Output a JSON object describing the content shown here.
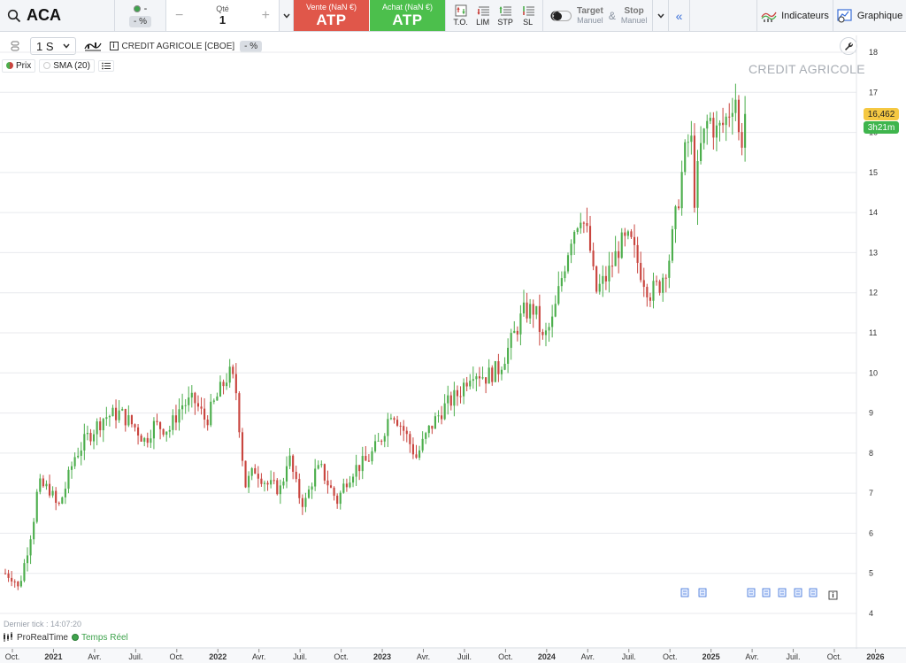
{
  "topbar": {
    "symbol": "ACA",
    "change_dot": "-",
    "change_pct": "- %",
    "qty_label": "Qté",
    "qty_value": "1",
    "qty_minus": "−",
    "qty_plus": "+",
    "sell_label": "Vente (NaN €)",
    "sell_value": "ATP",
    "buy_label": "Achat (NaN €)",
    "buy_value": "ATP",
    "orders": [
      {
        "label": "T.O."
      },
      {
        "label": "LIM"
      },
      {
        "label": "STP"
      },
      {
        "label": "SL"
      }
    ],
    "target_label": "Target",
    "target_sub": "Manuel",
    "amp": "&",
    "stop_label": "Stop",
    "stop_sub": "Manuel",
    "collapse": "«",
    "indicators_label": "Indicateurs",
    "graph_label": "Graphique"
  },
  "toolbar": {
    "timeframe": "1 S",
    "instrument": "CREDIT AGRICOLE [CBOE]",
    "pct": "- %"
  },
  "legend": {
    "price": "Prix",
    "sma": "SMA (20)"
  },
  "watermark": "CREDIT AGRICOLE",
  "tags": {
    "price": "16,462",
    "countdown": "3h21m"
  },
  "footer": {
    "last_tick": "Dernier tick : 14:07:20",
    "source": "ProRealTime",
    "realtime": "Temps Réel"
  },
  "colors": {
    "up": "#4cae4c",
    "down": "#c9453f",
    "grid": "#e8eaee",
    "price_tag": "#f5c842",
    "countdown_tag": "#3fb54d"
  },
  "chart_data": {
    "type": "candlestick",
    "title": "",
    "interval": "1 S",
    "ylim": [
      3.8,
      18.3
    ],
    "y_ticks": [
      4,
      5,
      6,
      7,
      8,
      9,
      10,
      11,
      12,
      13,
      14,
      15,
      16,
      17,
      18
    ],
    "x_ticks": [
      {
        "label": "Oct.",
        "t": 0.0,
        "bold": false
      },
      {
        "label": "2021",
        "t": 0.25,
        "bold": true
      },
      {
        "label": "Avr.",
        "t": 0.5,
        "bold": false
      },
      {
        "label": "Juil.",
        "t": 0.75,
        "bold": false
      },
      {
        "label": "Oct.",
        "t": 1.0,
        "bold": false
      },
      {
        "label": "2022",
        "t": 1.25,
        "bold": true
      },
      {
        "label": "Avr.",
        "t": 1.5,
        "bold": false
      },
      {
        "label": "Juil.",
        "t": 1.75,
        "bold": false
      },
      {
        "label": "Oct.",
        "t": 2.0,
        "bold": false
      },
      {
        "label": "2023",
        "t": 2.25,
        "bold": true
      },
      {
        "label": "Avr.",
        "t": 2.5,
        "bold": false
      },
      {
        "label": "Juil.",
        "t": 2.75,
        "bold": false
      },
      {
        "label": "Oct.",
        "t": 3.0,
        "bold": false
      },
      {
        "label": "2024",
        "t": 3.25,
        "bold": true
      },
      {
        "label": "Avr.",
        "t": 3.5,
        "bold": false
      },
      {
        "label": "Juil.",
        "t": 3.75,
        "bold": false
      },
      {
        "label": "Oct.",
        "t": 4.0,
        "bold": false
      },
      {
        "label": "2025",
        "t": 4.25,
        "bold": true
      },
      {
        "label": "Avr.",
        "t": 4.5,
        "bold": false
      },
      {
        "label": "Juil.",
        "t": 4.75,
        "bold": false
      },
      {
        "label": "Oct.",
        "t": 5.0,
        "bold": false
      },
      {
        "label": "2026",
        "t": 5.25,
        "bold": true
      }
    ],
    "anchors": [
      [
        0.0,
        5.0
      ],
      [
        0.05,
        4.9
      ],
      [
        0.08,
        4.6
      ],
      [
        0.13,
        5.5
      ],
      [
        0.17,
        6.3
      ],
      [
        0.2,
        7.2
      ],
      [
        0.27,
        7.1
      ],
      [
        0.32,
        6.6
      ],
      [
        0.37,
        7.2
      ],
      [
        0.42,
        7.9
      ],
      [
        0.5,
        8.4
      ],
      [
        0.6,
        8.9
      ],
      [
        0.7,
        9.0
      ],
      [
        0.8,
        8.6
      ],
      [
        0.85,
        8.3
      ],
      [
        0.9,
        8.7
      ],
      [
        1.0,
        8.6
      ],
      [
        1.07,
        9.2
      ],
      [
        1.15,
        9.3
      ],
      [
        1.22,
        8.8
      ],
      [
        1.3,
        9.5
      ],
      [
        1.36,
        10.0
      ],
      [
        1.4,
        9.7
      ],
      [
        1.43,
        8.4
      ],
      [
        1.46,
        7.2
      ],
      [
        1.52,
        7.6
      ],
      [
        1.6,
        7.2
      ],
      [
        1.68,
        7.1
      ],
      [
        1.72,
        8.0
      ],
      [
        1.78,
        7.0
      ],
      [
        1.82,
        6.7
      ],
      [
        1.88,
        7.5
      ],
      [
        1.92,
        7.6
      ],
      [
        1.98,
        7.1
      ],
      [
        2.02,
        6.8
      ],
      [
        2.07,
        7.3
      ],
      [
        2.12,
        7.6
      ],
      [
        2.2,
        7.8
      ],
      [
        2.28,
        8.3
      ],
      [
        2.35,
        9.1
      ],
      [
        2.42,
        8.6
      ],
      [
        2.5,
        7.9
      ],
      [
        2.58,
        8.6
      ],
      [
        2.66,
        9.1
      ],
      [
        2.76,
        9.5
      ],
      [
        2.84,
        10.1
      ],
      [
        2.92,
        9.9
      ],
      [
        3.0,
        10.1
      ],
      [
        3.07,
        10.7
      ],
      [
        3.15,
        11.5
      ],
      [
        3.22,
        11.6
      ],
      [
        3.27,
        10.8
      ],
      [
        3.33,
        11.3
      ],
      [
        3.38,
        12.3
      ],
      [
        3.44,
        13.4
      ],
      [
        3.5,
        14.0
      ],
      [
        3.55,
        13.3
      ],
      [
        3.59,
        12.0
      ],
      [
        3.66,
        12.4
      ],
      [
        3.74,
        13.2
      ],
      [
        3.8,
        13.3
      ],
      [
        3.86,
        12.6
      ],
      [
        3.92,
        12.0
      ],
      [
        3.98,
        12.2
      ],
      [
        4.04,
        12.9
      ],
      [
        4.09,
        14.2
      ],
      [
        4.13,
        15.4
      ],
      [
        4.17,
        16.0
      ],
      [
        4.19,
        14.3
      ],
      [
        4.23,
        15.6
      ],
      [
        4.28,
        16.4
      ],
      [
        4.32,
        16.0
      ],
      [
        4.37,
        16.2
      ],
      [
        4.41,
        16.6
      ],
      [
        4.44,
        17.0
      ],
      [
        4.47,
        15.5
      ],
      [
        4.5,
        16.46
      ]
    ]
  }
}
